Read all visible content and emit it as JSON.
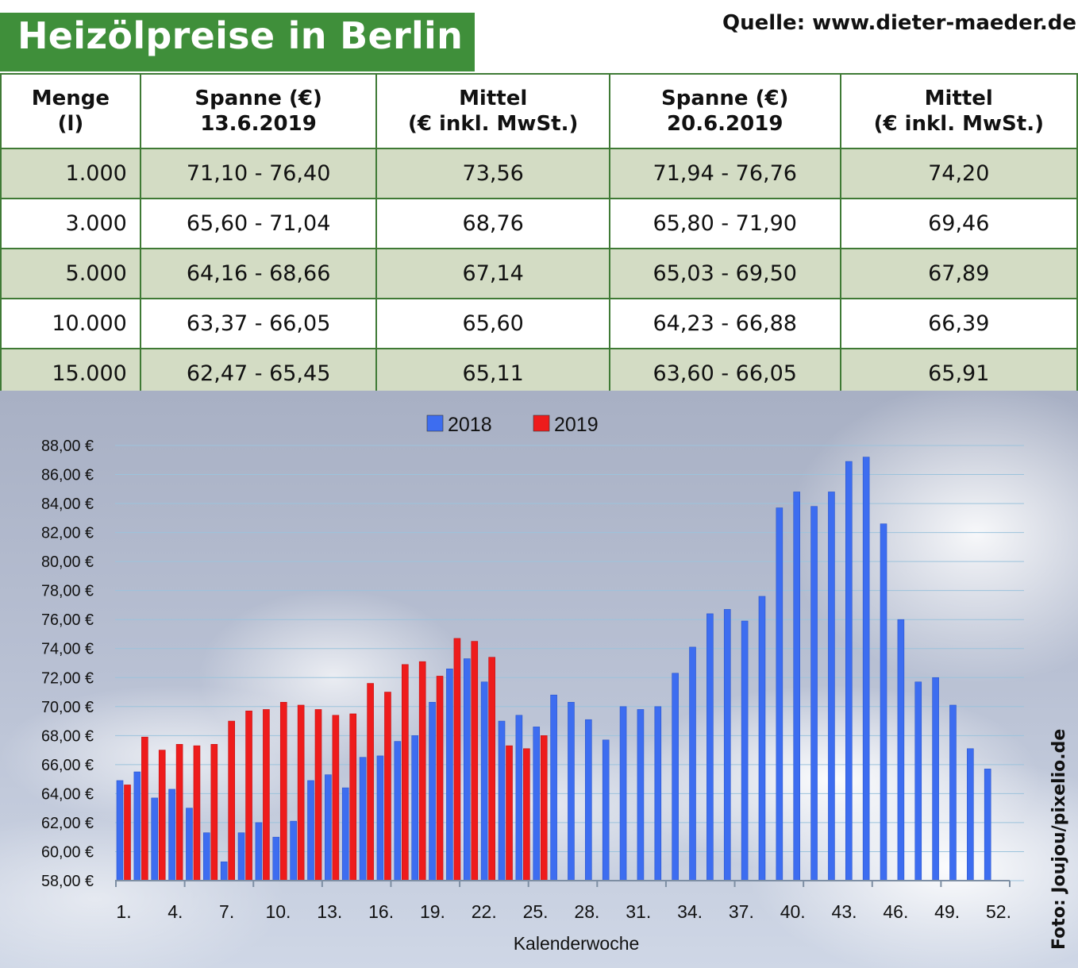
{
  "header": {
    "title": "Heizölpreise in Berlin",
    "source": "Quelle: www.dieter-maeder.de"
  },
  "table": {
    "columns": [
      [
        "Menge",
        "(l)"
      ],
      [
        "Spanne (€)",
        "13.6.2019"
      ],
      [
        "Mittel",
        "(€ inkl. MwSt.)"
      ],
      [
        "Spanne (€)",
        "20.6.2019"
      ],
      [
        "Mittel",
        "(€ inkl. MwSt.)"
      ]
    ],
    "rows": [
      [
        "1.000",
        "71,10 - 76,40",
        "73,56",
        "71,94 - 76,76",
        "74,20"
      ],
      [
        "3.000",
        "65,60 - 71,04",
        "68,76",
        "65,80 - 71,90",
        "69,46"
      ],
      [
        "5.000",
        "64,16 - 68,66",
        "67,14",
        "65,03 - 69,50",
        "67,89"
      ],
      [
        "10.000",
        "63,37 - 66,05",
        "65,60",
        "64,23 - 66,88",
        "66,39"
      ],
      [
        "15.000",
        "62,47 - 65,45",
        "65,11",
        "63,60 - 66,05",
        "65,91"
      ]
    ]
  },
  "chart_data": {
    "type": "bar",
    "xlabel": "Kalenderwoche",
    "ylabel": "",
    "ylim": [
      58,
      88
    ],
    "yticks": [
      58,
      60,
      62,
      64,
      66,
      68,
      70,
      72,
      74,
      76,
      78,
      80,
      82,
      84,
      86,
      88
    ],
    "ytick_labels": [
      "58,00 €",
      "60,00 €",
      "62,00 €",
      "64,00 €",
      "66,00 €",
      "68,00 €",
      "70,00 €",
      "72,00 €",
      "74,00 €",
      "76,00 €",
      "78,00 €",
      "80,00 €",
      "82,00 €",
      "84,00 €",
      "86,00 €",
      "88,00 €"
    ],
    "xtick_labels": [
      "1.",
      "4.",
      "7.",
      "10.",
      "13.",
      "16.",
      "19.",
      "22.",
      "25.",
      "28.",
      "31.",
      "34.",
      "37.",
      "40.",
      "43.",
      "46.",
      "49.",
      "52."
    ],
    "categories": [
      1,
      2,
      3,
      4,
      5,
      6,
      7,
      8,
      9,
      10,
      11,
      12,
      13,
      14,
      15,
      16,
      17,
      18,
      19,
      20,
      21,
      22,
      23,
      24,
      25,
      26,
      27,
      28,
      29,
      30,
      31,
      32,
      33,
      34,
      35,
      36,
      37,
      38,
      39,
      40,
      41,
      42,
      43,
      44,
      45,
      46,
      47,
      48,
      49,
      50,
      51,
      52
    ],
    "legend_position": "top-center",
    "grid": true,
    "series": [
      {
        "name": "2018",
        "color": "#3d6df0",
        "values": [
          64.9,
          65.5,
          63.7,
          64.3,
          63.0,
          61.3,
          59.3,
          61.3,
          62.0,
          61.0,
          62.1,
          64.9,
          65.3,
          64.4,
          66.5,
          66.6,
          67.6,
          68.0,
          70.3,
          72.6,
          73.3,
          71.7,
          69.0,
          69.4,
          68.6,
          70.8,
          70.3,
          69.1,
          67.7,
          70.0,
          69.8,
          70.0,
          72.3,
          74.1,
          76.4,
          76.7,
          75.9,
          77.6,
          83.7,
          84.8,
          83.8,
          84.8,
          86.9,
          87.2,
          82.6,
          76.0,
          71.7,
          72.0,
          70.1,
          67.1,
          65.7,
          null
        ]
      },
      {
        "name": "2019",
        "color": "#ee1c1c",
        "values": [
          64.6,
          67.9,
          67.0,
          67.4,
          67.3,
          67.4,
          69.0,
          69.7,
          69.8,
          70.3,
          70.1,
          69.8,
          69.4,
          69.5,
          71.6,
          71.0,
          72.9,
          73.1,
          72.1,
          74.7,
          74.5,
          73.4,
          67.3,
          67.1,
          68.0,
          null,
          null,
          null,
          null,
          null,
          null,
          null,
          null,
          null,
          null,
          null,
          null,
          null,
          null,
          null,
          null,
          null,
          null,
          null,
          null,
          null,
          null,
          null,
          null,
          null,
          null,
          null
        ]
      }
    ]
  },
  "credit": "Foto: Joujou/pixelio.de"
}
